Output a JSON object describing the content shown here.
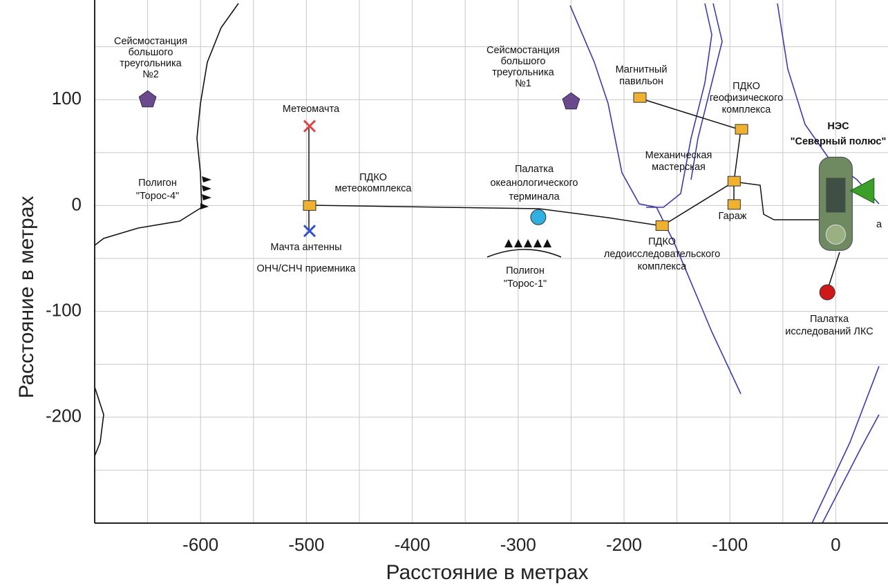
{
  "chart_data": {
    "type": "scatter",
    "x_label": "Расстояние в метрах",
    "y_label": "Расстояние в метрах",
    "xlim": [
      -700,
      41
    ],
    "ylim": [
      -300,
      195
    ],
    "xticks": [
      -600,
      -500,
      -400,
      -300,
      -200,
      -100,
      0
    ],
    "yticks": [
      -200,
      -100,
      0,
      100
    ],
    "grid": true,
    "xgrid": [
      -650,
      -600,
      -550,
      -500,
      -450,
      -400,
      -350,
      -300,
      -250,
      -200,
      -150,
      -100,
      -50,
      0
    ],
    "ygrid": [
      -250,
      -200,
      -150,
      -100,
      -50,
      0,
      50,
      100,
      150
    ],
    "points": [
      {
        "label": [
          "Сейсмостанция",
          "большого",
          "треугольника",
          "№2"
        ],
        "marker": "pentagon",
        "color": "#6a4a8c",
        "x": -650,
        "y": 100
      },
      {
        "label": [
          "Метеомачта"
        ],
        "marker": "cross",
        "color": "#e04040",
        "x": -497,
        "y": 75
      },
      {
        "label": [
          "ПДКО",
          "метеокомплекса"
        ],
        "marker": "square",
        "color": "#f0b030",
        "x": -497,
        "y": 0
      },
      {
        "label": [
          "Мачта антенны",
          "ОНЧ/СНЧ приемника"
        ],
        "marker": "cross",
        "color": "#3050d0",
        "x": -497,
        "y": -24
      },
      {
        "label": [
          "Палатка",
          "океанологического",
          "терминала"
        ],
        "marker": "circle",
        "color": "#30b0e0",
        "x": -281,
        "y": -11
      },
      {
        "label": [
          "Сейсмостанция",
          "большого",
          "треугольника",
          "№1"
        ],
        "marker": "pentagon",
        "color": "#6a4a8c",
        "x": -250,
        "y": 98
      },
      {
        "label": [
          "Магнитный",
          "павильон"
        ],
        "marker": "square",
        "color": "#f0b030",
        "x": -185,
        "y": 102
      },
      {
        "label": [
          "ПДКО",
          "геофизического",
          "комплекса"
        ],
        "marker": "square",
        "color": "#f0b030",
        "x": -89,
        "y": 72
      },
      {
        "label": [
          "Механическая",
          "мастерская"
        ],
        "marker": "square",
        "color": "#f0b030",
        "x": -96,
        "y": 23
      },
      {
        "label": [
          "Гараж"
        ],
        "marker": "square",
        "color": "#f0b030",
        "x": -96,
        "y": 1
      },
      {
        "label": [
          "ПДКО",
          "ледоисследовательского",
          "комплекса"
        ],
        "marker": "square",
        "color": "#f0b030",
        "x": -164,
        "y": -19
      },
      {
        "label": [
          "Палатка",
          "исследований ЛКС"
        ],
        "marker": "circle",
        "color": "#d01818",
        "x": -8,
        "y": -82
      },
      {
        "label": [
          "НЭС",
          "\"Северный полюс\""
        ],
        "marker": "ship",
        "color": "#6f8a60",
        "x": 0,
        "y": 0
      },
      {
        "label": [
          "а"
        ],
        "marker": "triangle",
        "color": "#3aa02a",
        "x": 27,
        "y": 14
      }
    ],
    "annotations": [
      [
        "Полигон",
        "\"Торос-4\""
      ],
      [
        "Полигон",
        "\"Торос-1\""
      ]
    ]
  }
}
